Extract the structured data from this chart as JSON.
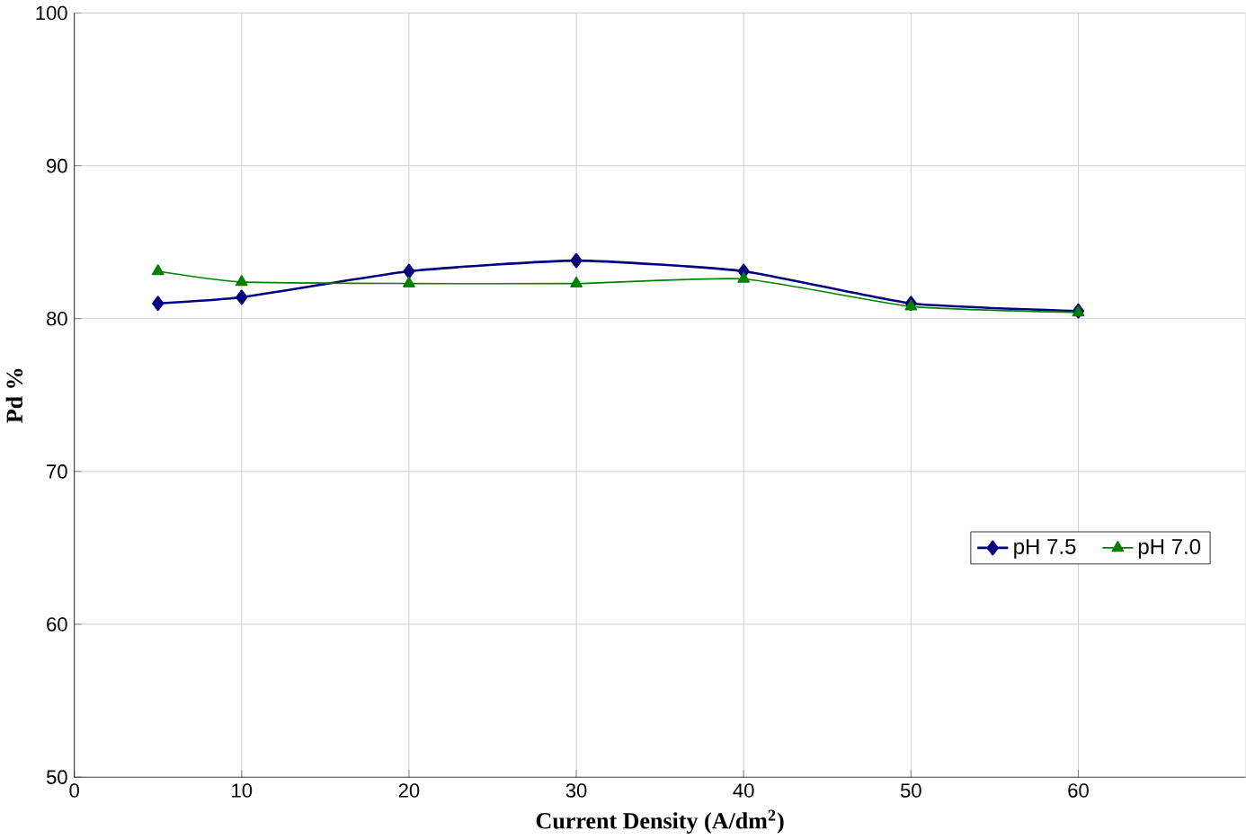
{
  "chart_data": {
    "type": "line",
    "xlabel": "Current Density (A/dm$^{2}$)",
    "ylabel": "Pd %",
    "x": [
      5,
      10,
      20,
      30,
      40,
      50,
      60
    ],
    "series": [
      {
        "name": "pH 7.5",
        "color": "#000080",
        "marker": "diamond",
        "values": [
          81.0,
          81.4,
          83.1,
          83.8,
          83.1,
          81.0,
          80.5
        ]
      },
      {
        "name": "pH 7.0",
        "color": "#008000",
        "marker": "triangle",
        "values": [
          83.1,
          82.4,
          82.3,
          82.3,
          82.6,
          80.8,
          80.4
        ]
      }
    ],
    "xlim": [
      0,
      70
    ],
    "xticks": [
      0,
      10,
      20,
      30,
      40,
      50,
      60
    ],
    "ylim": [
      50,
      100
    ],
    "yticks": [
      50,
      60,
      70,
      80,
      90,
      100
    ],
    "grid": true,
    "legend": "right"
  }
}
